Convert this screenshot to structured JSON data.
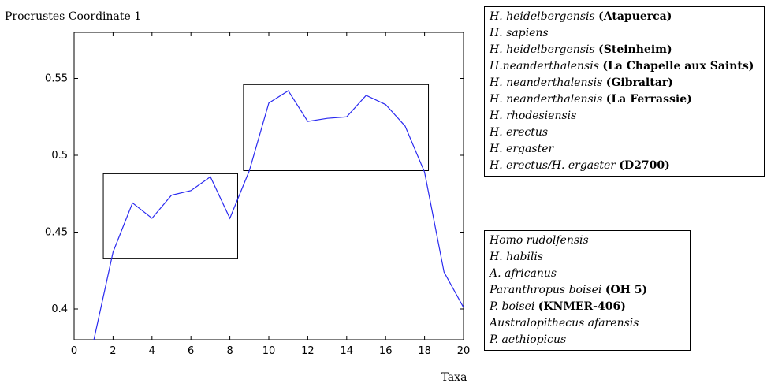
{
  "chart_data": {
    "type": "line",
    "title": "Procrustes Coordinate 1",
    "xlabel": "Taxa",
    "ylabel": "",
    "xlim": [
      0,
      20
    ],
    "ylim": [
      0.38,
      0.58
    ],
    "x_ticks": [
      0,
      2,
      4,
      6,
      8,
      10,
      12,
      14,
      16,
      18,
      20
    ],
    "y_ticks": [
      0.4,
      0.45,
      0.5,
      0.55
    ],
    "y_tick_labels": [
      "0.4",
      "0.45",
      "0.5",
      "0.55"
    ],
    "grid": false,
    "line_color": "#2a2af0",
    "series": [
      {
        "x": [
          1,
          2,
          3,
          4,
          5,
          6,
          7,
          8,
          9,
          10,
          11,
          12,
          13,
          14,
          15,
          16,
          17,
          18,
          19,
          20
        ],
        "values": [
          0.379,
          0.437,
          0.469,
          0.459,
          0.474,
          0.477,
          0.486,
          0.459,
          0.49,
          0.534,
          0.542,
          0.522,
          0.524,
          0.525,
          0.539,
          0.533,
          0.519,
          0.489,
          0.424,
          0.401
        ]
      }
    ],
    "boxes": [
      {
        "x_range": [
          1.5,
          8.4
        ],
        "y_range": [
          0.433,
          0.488
        ]
      },
      {
        "x_range": [
          8.7,
          18.2
        ],
        "y_range": [
          0.49,
          0.546
        ]
      }
    ]
  },
  "legend_top": [
    {
      "taxon": "H. heidelbergensis",
      "specimen": "(Atapuerca)"
    },
    {
      "taxon": "H. sapiens",
      "specimen": ""
    },
    {
      "taxon": "H. heidelbergensis",
      "specimen": "(Steinheim)"
    },
    {
      "taxon": "H.neanderthalensis",
      "specimen": "(La Chapelle aux Saints)"
    },
    {
      "taxon": "H. neanderthalensis",
      "specimen": "(Gibraltar)"
    },
    {
      "taxon": "H. neanderthalensis",
      "specimen": "(La Ferrassie)"
    },
    {
      "taxon": "H. rhodesiensis",
      "specimen": ""
    },
    {
      "taxon": "H. erectus",
      "specimen": ""
    },
    {
      "taxon": "H. ergaster",
      "specimen": ""
    },
    {
      "taxon": "H. erectus/H. ergaster",
      "specimen": "(D2700)"
    }
  ],
  "legend_bottom": [
    {
      "taxon": "Homo rudolfensis",
      "specimen": ""
    },
    {
      "taxon": "H. habilis",
      "specimen": ""
    },
    {
      "taxon": "A. africanus",
      "specimen": ""
    },
    {
      "taxon": "Paranthropus boisei",
      "specimen": "(OH 5)"
    },
    {
      "taxon": "P. boisei",
      "specimen": "(KNMER-406)"
    },
    {
      "taxon": "Australopithecus afarensis",
      "specimen": ""
    },
    {
      "taxon": "P. aethiopicus",
      "specimen": ""
    }
  ]
}
